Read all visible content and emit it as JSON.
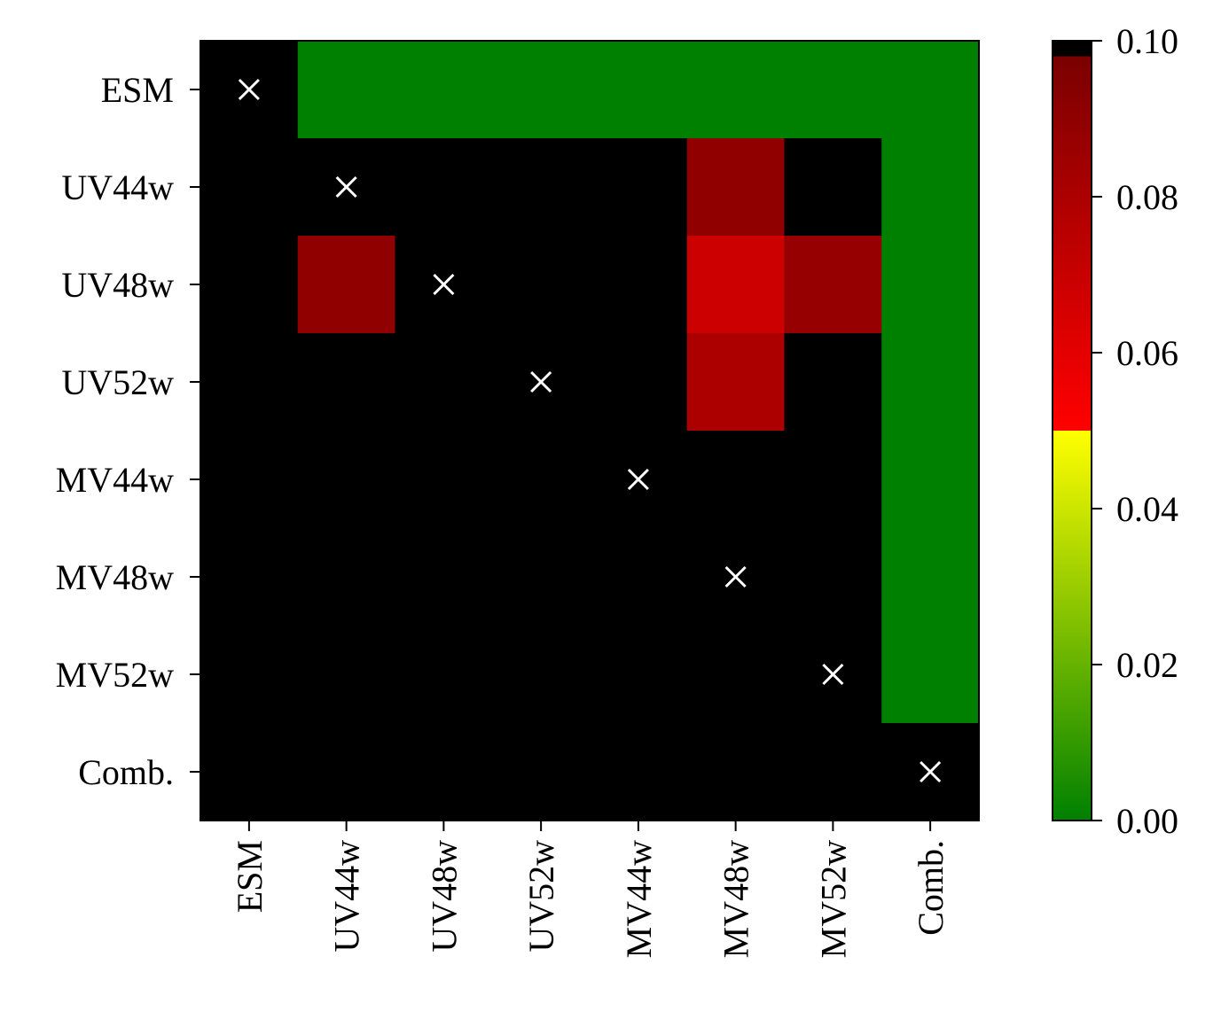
{
  "chart_data": {
    "type": "heatmap",
    "title": "",
    "xlabel": "",
    "ylabel": "",
    "row_labels": [
      "ESM",
      "UV44w",
      "UV48w",
      "UV52w",
      "MV44w",
      "MV48w",
      "MV52w",
      "Comb."
    ],
    "col_labels": [
      "ESM",
      "UV44w",
      "UV48w",
      "UV52w",
      "MV44w",
      "MV48w",
      "MV52w",
      "Comb."
    ],
    "values": [
      [
        null,
        0,
        0,
        0,
        0,
        0,
        0,
        0
      ],
      [
        0.1,
        null,
        0.1,
        0.1,
        0.1,
        0.09,
        0.1,
        0
      ],
      [
        0.1,
        0.09,
        null,
        0.1,
        0.1,
        0.068,
        0.088,
        0
      ],
      [
        0.1,
        0.1,
        0.1,
        null,
        0.1,
        0.08,
        0.1,
        0
      ],
      [
        0.1,
        0.1,
        0.1,
        0.1,
        null,
        0.1,
        0.1,
        0
      ],
      [
        0.1,
        0.1,
        0.1,
        0.1,
        0.1,
        null,
        0.1,
        0
      ],
      [
        0.1,
        0.1,
        0.1,
        0.1,
        0.1,
        0.1,
        null,
        0
      ],
      [
        0.1,
        0.1,
        0.1,
        0.1,
        0.1,
        0.1,
        0.1,
        null
      ]
    ],
    "diagonal_marker": "×",
    "colorbar": {
      "range": [
        0.0,
        0.1
      ],
      "ticks": [
        "0.00",
        "0.02",
        "0.04",
        "0.06",
        "0.08",
        "0.10"
      ],
      "tick_values": [
        0.0,
        0.02,
        0.04,
        0.06,
        0.08,
        0.1
      ]
    },
    "colors": {
      "low": "#008000",
      "mid_low": "#ffff00",
      "mid_high": "#ff0000",
      "high": "#7a0000",
      "max": "#000000",
      "marker": "#ffffff"
    }
  }
}
